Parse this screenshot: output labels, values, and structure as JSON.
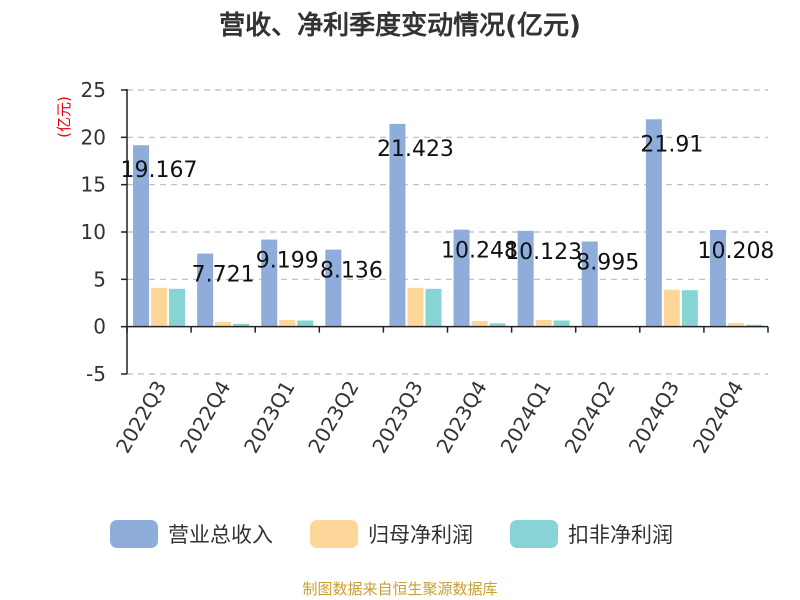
{
  "chart_data": {
    "type": "bar",
    "title": "营收、净利季度变动情况(亿元)",
    "ylabel": "(亿元)",
    "xlabel": "",
    "ylim": [
      -5,
      25
    ],
    "yticks": [
      -5,
      0,
      5,
      10,
      15,
      20,
      25
    ],
    "grid": true,
    "legend_position": "bottom",
    "categories": [
      "2022Q3",
      "2022Q4",
      "2023Q1",
      "2023Q2",
      "2023Q3",
      "2023Q4",
      "2024Q1",
      "2024Q2",
      "2024Q3",
      "2024Q4"
    ],
    "series": [
      {
        "name": "营业总收入",
        "color": "#8eaddb",
        "values": [
          19.167,
          7.721,
          9.199,
          8.136,
          21.423,
          10.248,
          10.123,
          8.995,
          21.91,
          10.208
        ]
      },
      {
        "name": "归母净利润",
        "color": "#fdd79a",
        "values": [
          4.1,
          0.5,
          0.7,
          0.05,
          4.1,
          0.6,
          0.7,
          0.05,
          3.9,
          0.4
        ]
      },
      {
        "name": "扣非净利润",
        "color": "#86d4d6",
        "values": [
          4.0,
          0.3,
          0.65,
          0.05,
          4.0,
          0.35,
          0.65,
          0.05,
          3.85,
          0.2
        ]
      }
    ],
    "data_labels": [
      "19.167",
      "7.721",
      "9.199",
      "8.136",
      "21.423",
      "10.248",
      "10.123",
      "8.995",
      "21.91",
      "10.208"
    ]
  },
  "source": "制图数据来自恒生聚源数据库"
}
